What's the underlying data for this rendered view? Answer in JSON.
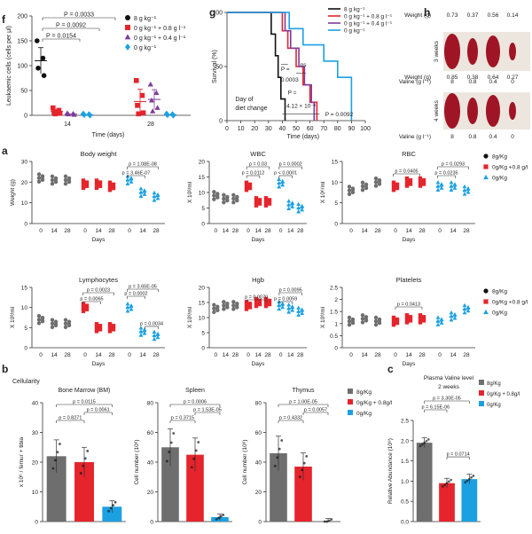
{
  "colors": {
    "black": "#111111",
    "gray": "#6e6e6e",
    "red": "#e5242c",
    "purple": "#7e3d9c",
    "blue": "#1ba1e2",
    "darkred": "#a01525"
  },
  "panel_labels": {
    "f": "f",
    "g": "g",
    "h": "h",
    "a": "a",
    "b": "b",
    "c": "c"
  },
  "chart_data": [
    {
      "panel": "f",
      "type": "scatter",
      "ylabel": "Leukaemic cells (cells per μl)",
      "xlabel": "Time (days)",
      "ylim": [
        0,
        200
      ],
      "yticks": [
        0,
        50,
        100,
        150,
        200
      ],
      "categories": [
        "14",
        "28"
      ],
      "legend": [
        "8 g kg⁻¹",
        "0 g kg⁻¹ + 0.8 g l⁻¹",
        "0 g kg⁻¹ + 0.4 g l⁻¹",
        "0 g kg⁻¹"
      ],
      "pvalues": [
        "P = 0.0033",
        "P = 0.0092",
        "P = 0.0154"
      ],
      "series": [
        {
          "name": "8 g kg⁻¹",
          "marker": "circle",
          "color": "#111111",
          "day14": [
            150,
            115,
            95,
            80
          ],
          "day28": []
        },
        {
          "name": "0 g kg⁻¹ + 0.8 g l⁻¹",
          "marker": "square",
          "color": "#e5242c",
          "day14": [
            15,
            10,
            6,
            4,
            3
          ],
          "day28": [
            70,
            40,
            20,
            5,
            3
          ]
        },
        {
          "name": "0 g kg⁻¹ + 0.4 g l⁻¹",
          "marker": "triangle",
          "color": "#7e3d9c",
          "day14": [
            4,
            3,
            2,
            1
          ],
          "day28": [
            62,
            45,
            30,
            15,
            8
          ]
        },
        {
          "name": "0 g kg⁻¹",
          "marker": "diamond",
          "color": "#1ba1e2",
          "day14": [
            3,
            2,
            1,
            0
          ],
          "day28": [
            3,
            2,
            1,
            0
          ]
        }
      ]
    },
    {
      "panel": "g",
      "type": "line",
      "ylabel": "Survival (%)",
      "xlabel": "Time (days)",
      "xlim": [
        0,
        100
      ],
      "ylim": [
        0,
        100
      ],
      "xticks": [
        0,
        10,
        20,
        30,
        40,
        50,
        60,
        70,
        80,
        90,
        100
      ],
      "yticks": [
        0,
        50,
        100
      ],
      "annotation": "Day of diet change",
      "pvalues": [
        "P =",
        "0.0003",
        "ns",
        "P =",
        "4.12 × 10⁻⁶",
        "P = 0.0092"
      ],
      "legend": [
        "8 g kg⁻¹",
        "0 g kg⁻¹ + 0.8 g l⁻¹",
        "0 g kg⁻¹ + 0.4 g l⁻¹",
        "0 g kg⁻¹"
      ],
      "series": [
        {
          "name": "8 g kg⁻¹",
          "color": "#111111",
          "steps": [
            [
              0,
              100
            ],
            [
              32,
              100
            ],
            [
              32,
              80
            ],
            [
              35,
              80
            ],
            [
              35,
              60
            ],
            [
              37,
              60
            ],
            [
              37,
              40
            ],
            [
              39,
              40
            ],
            [
              39,
              20
            ],
            [
              42,
              20
            ],
            [
              42,
              0
            ]
          ]
        },
        {
          "name": "0 g kg⁻¹ + 0.8 g l⁻¹",
          "color": "#e5242c",
          "steps": [
            [
              0,
              100
            ],
            [
              40,
              100
            ],
            [
              40,
              83
            ],
            [
              44,
              83
            ],
            [
              44,
              67
            ],
            [
              50,
              67
            ],
            [
              50,
              50
            ],
            [
              55,
              50
            ],
            [
              55,
              33
            ],
            [
              60,
              33
            ],
            [
              60,
              17
            ],
            [
              65,
              17
            ],
            [
              65,
              0
            ]
          ]
        },
        {
          "name": "0 g kg⁻¹ + 0.4 g l⁻¹",
          "color": "#7e3d9c",
          "steps": [
            [
              0,
              100
            ],
            [
              42,
              100
            ],
            [
              42,
              83
            ],
            [
              46,
              83
            ],
            [
              46,
              67
            ],
            [
              52,
              67
            ],
            [
              52,
              50
            ],
            [
              56,
              50
            ],
            [
              56,
              33
            ],
            [
              61,
              33
            ],
            [
              61,
              17
            ],
            [
              63,
              17
            ],
            [
              63,
              0
            ]
          ]
        },
        {
          "name": "0 g kg⁻¹",
          "color": "#1ba1e2",
          "steps": [
            [
              0,
              100
            ],
            [
              45,
              100
            ],
            [
              45,
              85
            ],
            [
              55,
              85
            ],
            [
              55,
              70
            ],
            [
              70,
              70
            ],
            [
              70,
              55
            ],
            [
              80,
              55
            ],
            [
              80,
              40
            ],
            [
              90,
              40
            ],
            [
              90,
              0
            ]
          ]
        }
      ]
    },
    {
      "panel": "h",
      "type": "table",
      "row_labels": [
        "3 weeks",
        "4 weeks"
      ],
      "weight_label": "Weight (g)",
      "valine_label": "Valine (g l⁻¹)",
      "valine": [
        "8",
        "0.8",
        "0.4",
        "0"
      ],
      "weights": [
        [
          "0.73",
          "0.37",
          "0.56",
          "0.14"
        ],
        [
          "0.85",
          "0.38",
          "0.64",
          "0.27"
        ]
      ]
    },
    {
      "panel": "a",
      "type": "scatter",
      "xlabel": "Days",
      "xcats": [
        "0",
        "14",
        "28"
      ],
      "legend": [
        "8g/Kg",
        "0g/Kg +0.8 g/l",
        "0g/Kg"
      ],
      "subplots": [
        {
          "title": "Body weight",
          "ylabel": "Weight (g)",
          "ylim": [
            0,
            30
          ],
          "yticks": [
            0,
            10,
            20,
            30
          ],
          "groups": [
            {
              "color": "#6e6e6e",
              "marker": "circle",
              "means": [
                22,
                21,
                21
              ]
            },
            {
              "color": "#e5242c",
              "marker": "square",
              "means": [
                19,
                19,
                18
              ]
            },
            {
              "color": "#1ba1e2",
              "marker": "triangle",
              "means": [
                21,
                15,
                13
              ]
            }
          ],
          "pvalues": [
            "p = 1.08E-08",
            "p = 3.46E-07"
          ]
        },
        {
          "title": "WBC",
          "ylabel": "X 10³/ml",
          "ylim": [
            0,
            20
          ],
          "yticks": [
            0,
            5,
            10,
            15,
            20
          ],
          "groups": [
            {
              "color": "#6e6e6e",
              "marker": "circle",
              "means": [
                9,
                8,
                8
              ]
            },
            {
              "color": "#e5242c",
              "marker": "square",
              "means": [
                12,
                7,
                7
              ]
            },
            {
              "color": "#1ba1e2",
              "marker": "triangle",
              "means": [
                13,
                6,
                5
              ]
            }
          ],
          "pvalues": [
            "p = 0.03",
            "p = 0.0112",
            "p = 0.0002",
            "p < 0.0001"
          ]
        },
        {
          "title": "RBC",
          "ylabel": "X 10⁶/ml",
          "ylim": [
            0,
            15
          ],
          "yticks": [
            0,
            5,
            10,
            15
          ],
          "groups": [
            {
              "color": "#6e6e6e",
              "marker": "circle",
              "means": [
                8,
                9,
                10
              ]
            },
            {
              "color": "#e5242c",
              "marker": "square",
              "means": [
                9,
                10,
                10
              ]
            },
            {
              "color": "#1ba1e2",
              "marker": "triangle",
              "means": [
                9,
                9,
                8
              ]
            }
          ],
          "pvalues": [
            "p = 0.0405",
            "p = 0.0293",
            "p = 0.0235"
          ]
        },
        {
          "title": "Lymphocytes",
          "ylabel": "X 10³/ml",
          "ylim": [
            0,
            15
          ],
          "yticks": [
            0,
            5,
            10,
            15
          ],
          "groups": [
            {
              "color": "#6e6e6e",
              "marker": "circle",
              "means": [
                7,
                6,
                6
              ]
            },
            {
              "color": "#e5242c",
              "marker": "square",
              "means": [
                10,
                5,
                5
              ]
            },
            {
              "color": "#1ba1e2",
              "marker": "triangle",
              "means": [
                10,
                4,
                3
              ]
            }
          ],
          "pvalues": [
            "p = 0.0023",
            "p = 0.0065",
            "p = 3.65E-05",
            "p = 0.0002",
            "p = 0.0034"
          ]
        },
        {
          "title": "Hgb",
          "ylabel": "X 10³/ml",
          "ylim": [
            0,
            20
          ],
          "yticks": [
            0,
            5,
            10,
            15,
            20
          ],
          "groups": [
            {
              "color": "#6e6e6e",
              "marker": "circle",
              "means": [
                13,
                14,
                14
              ]
            },
            {
              "color": "#e5242c",
              "marker": "square",
              "means": [
                14,
                15,
                15
              ]
            },
            {
              "color": "#1ba1e2",
              "marker": "triangle",
              "means": [
                14,
                13,
                12
              ]
            }
          ],
          "pvalues": [
            "p = 0.0070",
            "p = 0.0095",
            "p = 0.0059"
          ]
        },
        {
          "title": "Platelets",
          "ylabel": "X 10³/ml",
          "ylim": [
            0,
            2.5
          ],
          "yticks": [
            0,
            0.5,
            1.0,
            1.5,
            2.0,
            2.5
          ],
          "groups": [
            {
              "color": "#6e6e6e",
              "marker": "circle",
              "means": [
                1.1,
                1.2,
                1.1
              ]
            },
            {
              "color": "#e5242c",
              "marker": "square",
              "means": [
                1.1,
                1.2,
                1.2
              ]
            },
            {
              "color": "#1ba1e2",
              "marker": "triangle",
              "means": [
                1.1,
                1.3,
                1.6
              ]
            }
          ],
          "pvalues": [
            "p = 0.0413"
          ]
        }
      ]
    },
    {
      "panel": "b",
      "type": "bar",
      "heading": "Cellularity",
      "legend": [
        "8g/Kg",
        "0g/Kg + 0.8g/l",
        "0g/Kg"
      ],
      "subplots": [
        {
          "title": "Bone Marrow (BM)",
          "ylabel": "x 10⁶ / femur + tibia",
          "ylim": [
            0,
            40
          ],
          "yticks": [
            0,
            10,
            20,
            30,
            40
          ],
          "values": [
            22,
            20,
            5
          ],
          "pvalues": [
            "p = 0.0115",
            "p = 0.8271",
            "p = 0.0061"
          ]
        },
        {
          "title": "Spleen",
          "ylabel": "Cell number (10⁶)",
          "ylim": [
            0,
            80
          ],
          "yticks": [
            0,
            20,
            40,
            60,
            80
          ],
          "values": [
            50,
            45,
            3
          ],
          "pvalues": [
            "p = 0.0006",
            "p = 0.3715",
            "p = 1.53E-05"
          ]
        },
        {
          "title": "Thymus",
          "ylabel": "Cell number (10⁶)",
          "ylim": [
            0,
            80
          ],
          "yticks": [
            0,
            20,
            40,
            60,
            80
          ],
          "values": [
            46,
            37,
            0
          ],
          "pvalues": [
            "p = 1.00E-05",
            "p = 0.4332",
            "p = 0.0057"
          ]
        }
      ]
    },
    {
      "panel": "c",
      "type": "bar",
      "title": "Plasma Valine level",
      "subtitle": "2 weeks",
      "ylabel": "Relative Abundance (10⁹)",
      "ylim": [
        0,
        2.5
      ],
      "yticks": [
        0,
        0.5,
        1.0,
        1.5,
        2.0,
        2.5
      ],
      "legend": [
        "8g/Kg",
        "0g/Kg + 0.8g/l",
        "0g/Kg"
      ],
      "values": [
        1.95,
        0.95,
        1.05
      ],
      "pvalues": [
        "p = 3.30E-05",
        "p = 6.15E-06",
        "p = 0.0714"
      ]
    }
  ]
}
